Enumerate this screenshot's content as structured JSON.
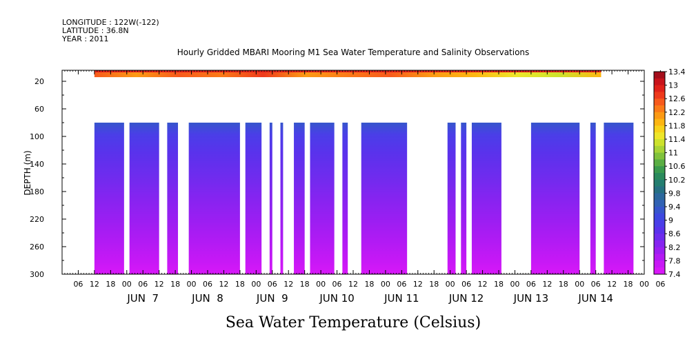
{
  "header": {
    "longitude": "LONGITUDE : 122W(-122)",
    "latitude": "LATITUDE : 36.8N",
    "year": "YEAR : 2011"
  },
  "chart_data": {
    "type": "heatmap",
    "title": "Hourly Gridded MBARI Mooring M1 Sea Water Temperature and Salinity Observations",
    "xlabel": "Sea Water Temperature (Celsius)",
    "ylabel": "DEPTH (m)",
    "grid": false,
    "x_hour_ticks": [
      "06",
      "12",
      "18",
      "00",
      "06",
      "12",
      "18",
      "00",
      "06",
      "12",
      "18",
      "00",
      "06",
      "12",
      "18",
      "00",
      "06",
      "12",
      "18",
      "00",
      "06",
      "12",
      "18",
      "00",
      "06",
      "12",
      "18",
      "00",
      "06",
      "12",
      "18",
      "00",
      "06",
      "12",
      "18",
      "00",
      "06"
    ],
    "x_day_labels": [
      "JUN  7",
      "JUN  8",
      "JUN  9",
      "JUN 10",
      "JUN 11",
      "JUN 12",
      "JUN 13",
      "JUN 14"
    ],
    "y_ticks": [
      20,
      60,
      100,
      140,
      180,
      220,
      260,
      300
    ],
    "y_range": [
      300,
      4
    ],
    "colorbar": {
      "labels": [
        "13.4",
        "13",
        "12.6",
        "12.2",
        "11.8",
        "11.4",
        "11",
        "10.6",
        "10.2",
        "9.8",
        "9.4",
        "9",
        "8.6",
        "8.2",
        "7.8",
        "7.4"
      ],
      "colors": [
        "#a40f1c",
        "#c8141c",
        "#e0221a",
        "#ee3a1c",
        "#f75a1c",
        "#fb7a18",
        "#fc9a14",
        "#fdb612",
        "#f8d21a",
        "#eee62a",
        "#cde22c",
        "#a8d436",
        "#80c23c",
        "#5aae44",
        "#3a9a4e",
        "#2a8a5c",
        "#247e70",
        "#267083",
        "#2c689d",
        "#3162b4",
        "#3656cc",
        "#3d48e0",
        "#4a3ee8",
        "#5a32ec",
        "#6e2cee",
        "#8624f0",
        "#9c1ef2",
        "#b41af4",
        "#c818f6",
        "#d818f8"
      ]
    },
    "series": [
      {
        "depth_range_m": [
          4,
          14
        ],
        "description_value_range": [
          11.8,
          13.4
        ],
        "time_range_hours_from_jun6_00": [
          12,
          200
        ]
      },
      {
        "depth_range_m": [
          80,
          300
        ],
        "value_at_top": 9.4,
        "value_at_bottom": 7.4,
        "data_segments_hours_from_jun6_00": [
          [
            12,
            23
          ],
          [
            25,
            36
          ],
          [
            39,
            43
          ],
          [
            47,
            66
          ],
          [
            68,
            74
          ],
          [
            77,
            78
          ],
          [
            81,
            82
          ],
          [
            86,
            90
          ],
          [
            92,
            101
          ],
          [
            104,
            106
          ],
          [
            111,
            128
          ],
          [
            143,
            146
          ],
          [
            148,
            150
          ],
          [
            152,
            163
          ],
          [
            174,
            192
          ],
          [
            196,
            198
          ],
          [
            201,
            212
          ]
        ]
      }
    ]
  }
}
